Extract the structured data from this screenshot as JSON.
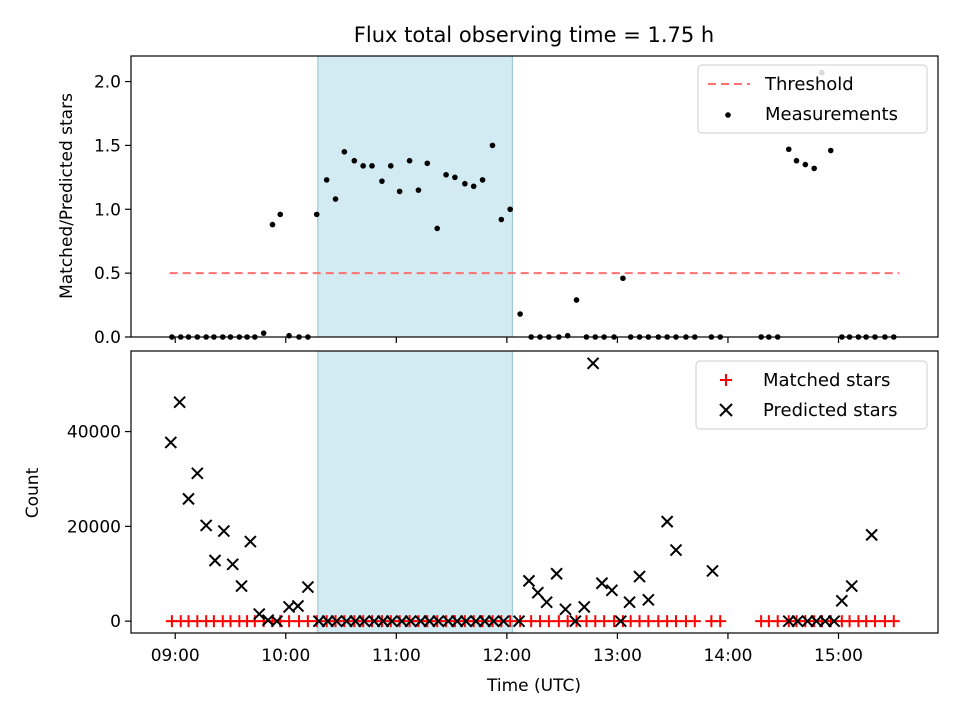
{
  "title": "Flux total observing time = 1.75 h",
  "shaded_region": {
    "start_hour": 10.29,
    "end_hour": 12.05,
    "color": "#add8e6"
  },
  "x_axis": {
    "xlabel": "Time (UTC)",
    "xlim": [
      8.6,
      15.9
    ],
    "ticks": [
      9,
      10,
      11,
      12,
      13,
      14,
      15
    ],
    "tick_labels": [
      "09:00",
      "10:00",
      "11:00",
      "12:00",
      "13:00",
      "14:00",
      "15:00"
    ]
  },
  "chart_data": [
    {
      "type": "scatter",
      "panel": "top",
      "ylabel": "Matched/Predicted stars",
      "ylim": [
        0,
        2.2
      ],
      "yticks": [
        0.0,
        0.5,
        1.0,
        1.5,
        2.0
      ],
      "ytick_labels": [
        "0.0",
        "0.5",
        "1.0",
        "1.5",
        "2.0"
      ],
      "legend_position": "top-right",
      "threshold": {
        "name": "Threshold",
        "value": 0.5,
        "x_range": [
          8.95,
          15.55
        ],
        "color": "#ff7070"
      },
      "series": [
        {
          "name": "Measurements",
          "color": "#000000",
          "points": [
            [
              8.97,
              0
            ],
            [
              9.05,
              0
            ],
            [
              9.12,
              0
            ],
            [
              9.2,
              0
            ],
            [
              9.28,
              0
            ],
            [
              9.35,
              0
            ],
            [
              9.43,
              0
            ],
            [
              9.5,
              0
            ],
            [
              9.58,
              0
            ],
            [
              9.65,
              0
            ],
            [
              9.72,
              0
            ],
            [
              9.8,
              0.03
            ],
            [
              9.88,
              0.88
            ],
            [
              9.95,
              0.96
            ],
            [
              10.03,
              0.01
            ],
            [
              10.12,
              0
            ],
            [
              10.2,
              0
            ],
            [
              10.28,
              0.96
            ],
            [
              10.37,
              1.23
            ],
            [
              10.45,
              1.08
            ],
            [
              10.53,
              1.45
            ],
            [
              10.62,
              1.38
            ],
            [
              10.7,
              1.34
            ],
            [
              10.78,
              1.34
            ],
            [
              10.87,
              1.22
            ],
            [
              10.95,
              1.34
            ],
            [
              11.03,
              1.14
            ],
            [
              11.12,
              1.38
            ],
            [
              11.2,
              1.15
            ],
            [
              11.28,
              1.36
            ],
            [
              11.37,
              0.85
            ],
            [
              11.45,
              1.27
            ],
            [
              11.53,
              1.25
            ],
            [
              11.62,
              1.2
            ],
            [
              11.7,
              1.18
            ],
            [
              11.78,
              1.23
            ],
            [
              11.87,
              1.5
            ],
            [
              11.95,
              0.92
            ],
            [
              12.03,
              1.0
            ],
            [
              12.12,
              0.18
            ],
            [
              12.22,
              0
            ],
            [
              12.3,
              0
            ],
            [
              12.38,
              0
            ],
            [
              12.47,
              0
            ],
            [
              12.55,
              0.01
            ],
            [
              12.63,
              0.29
            ],
            [
              12.72,
              0
            ],
            [
              12.8,
              0
            ],
            [
              12.88,
              0
            ],
            [
              12.97,
              0
            ],
            [
              13.05,
              0.46
            ],
            [
              13.12,
              0
            ],
            [
              13.2,
              0
            ],
            [
              13.28,
              0
            ],
            [
              13.37,
              0
            ],
            [
              13.45,
              0
            ],
            [
              13.53,
              0
            ],
            [
              13.62,
              0
            ],
            [
              13.7,
              0
            ],
            [
              13.85,
              0
            ],
            [
              13.93,
              0
            ],
            [
              14.3,
              0
            ],
            [
              14.37,
              0
            ],
            [
              14.45,
              0
            ],
            [
              14.55,
              1.47
            ],
            [
              14.62,
              1.38
            ],
            [
              14.7,
              1.35
            ],
            [
              14.78,
              1.32
            ],
            [
              14.85,
              2.07
            ],
            [
              14.93,
              1.46
            ],
            [
              15.03,
              0
            ],
            [
              15.1,
              0
            ],
            [
              15.18,
              0
            ],
            [
              15.25,
              0
            ],
            [
              15.33,
              0
            ],
            [
              15.42,
              0
            ],
            [
              15.5,
              0
            ]
          ]
        }
      ]
    },
    {
      "type": "scatter",
      "panel": "bottom",
      "ylabel": "Count",
      "ylim": [
        -2500,
        57000
      ],
      "yticks": [
        0,
        20000,
        40000
      ],
      "ytick_labels": [
        "0",
        "20000",
        "40000"
      ],
      "legend_position": "top-right",
      "series": [
        {
          "name": "Matched stars",
          "marker": "plus",
          "color": "#ff0000",
          "x": [
            8.97,
            9.05,
            9.12,
            9.2,
            9.28,
            9.35,
            9.43,
            9.5,
            9.58,
            9.65,
            9.72,
            9.8,
            9.88,
            9.95,
            10.03,
            10.12,
            10.2,
            10.28,
            10.37,
            10.45,
            10.53,
            10.62,
            10.7,
            10.78,
            10.87,
            10.95,
            11.03,
            11.12,
            11.2,
            11.28,
            11.37,
            11.45,
            11.53,
            11.62,
            11.7,
            11.78,
            11.87,
            11.95,
            12.03,
            12.12,
            12.22,
            12.3,
            12.38,
            12.47,
            12.55,
            12.63,
            12.72,
            12.8,
            12.88,
            12.97,
            13.05,
            13.12,
            13.2,
            13.28,
            13.37,
            13.45,
            13.53,
            13.62,
            13.7,
            13.85,
            13.93,
            14.3,
            14.37,
            14.45,
            14.55,
            14.62,
            14.7,
            14.78,
            14.85,
            14.93,
            15.03,
            15.1,
            15.18,
            15.25,
            15.33,
            15.42,
            15.5
          ],
          "y_value": 0
        },
        {
          "name": "Predicted stars",
          "marker": "x",
          "color": "#000000",
          "points": [
            [
              8.96,
              37700
            ],
            [
              9.04,
              46200
            ],
            [
              9.12,
              25800
            ],
            [
              9.2,
              31200
            ],
            [
              9.28,
              20200
            ],
            [
              9.36,
              12800
            ],
            [
              9.44,
              19000
            ],
            [
              9.52,
              12000
            ],
            [
              9.6,
              7400
            ],
            [
              9.68,
              16800
            ],
            [
              9.76,
              1500
            ],
            [
              9.84,
              200
            ],
            [
              9.92,
              0
            ],
            [
              10.03,
              3000
            ],
            [
              10.11,
              3200
            ],
            [
              10.2,
              7200
            ],
            [
              10.3,
              0
            ],
            [
              10.38,
              0
            ],
            [
              10.46,
              0
            ],
            [
              10.55,
              0
            ],
            [
              10.63,
              0
            ],
            [
              10.71,
              0
            ],
            [
              10.8,
              0
            ],
            [
              10.88,
              0
            ],
            [
              10.96,
              0
            ],
            [
              11.05,
              0
            ],
            [
              11.13,
              0
            ],
            [
              11.22,
              0
            ],
            [
              11.3,
              0
            ],
            [
              11.38,
              0
            ],
            [
              11.47,
              0
            ],
            [
              11.55,
              0
            ],
            [
              11.63,
              0
            ],
            [
              11.72,
              0
            ],
            [
              11.8,
              0
            ],
            [
              11.88,
              0
            ],
            [
              11.97,
              0
            ],
            [
              12.11,
              0
            ],
            [
              12.2,
              8500
            ],
            [
              12.28,
              6000
            ],
            [
              12.36,
              4000
            ],
            [
              12.45,
              10000
            ],
            [
              12.53,
              2500
            ],
            [
              12.62,
              0
            ],
            [
              12.7,
              3000
            ],
            [
              12.78,
              54400
            ],
            [
              12.86,
              8000
            ],
            [
              12.95,
              6500
            ],
            [
              13.03,
              0
            ],
            [
              13.11,
              4000
            ],
            [
              13.2,
              9400
            ],
            [
              13.28,
              4500
            ],
            [
              13.45,
              21000
            ],
            [
              13.53,
              15000
            ],
            [
              13.86,
              10600
            ],
            [
              14.55,
              0
            ],
            [
              14.63,
              0
            ],
            [
              14.72,
              0
            ],
            [
              14.8,
              0
            ],
            [
              14.88,
              0
            ],
            [
              14.96,
              0
            ],
            [
              15.03,
              4300
            ],
            [
              15.12,
              7400
            ],
            [
              15.3,
              18200
            ]
          ]
        }
      ]
    }
  ]
}
